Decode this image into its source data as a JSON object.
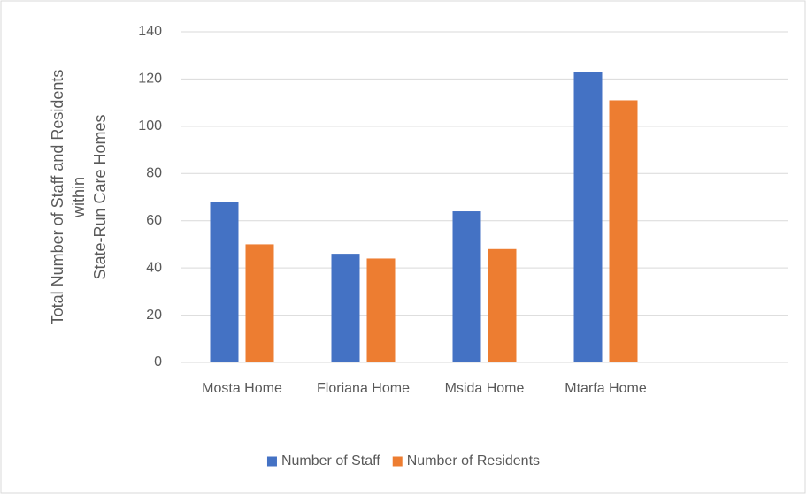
{
  "chart_data": {
    "type": "bar",
    "y_label": [
      "Total Number of Staff and Residents",
      "within",
      "State-Run Care Homes"
    ],
    "categories": [
      "Mosta Home",
      "Floriana Home",
      "Msida Home",
      "Mtarfa Home",
      null
    ],
    "series": [
      {
        "name": "Number of Staff",
        "color": "#4472c4",
        "values": [
          68,
          46,
          64,
          123,
          null
        ]
      },
      {
        "name": "Number of Residents",
        "color": "#ed7d31",
        "values": [
          50,
          44,
          48,
          111,
          null
        ]
      }
    ],
    "ylim": [
      0,
      140
    ],
    "yticks": [
      0,
      20,
      40,
      60,
      80,
      100,
      120,
      140
    ],
    "grid": true,
    "legend": "bottom"
  }
}
